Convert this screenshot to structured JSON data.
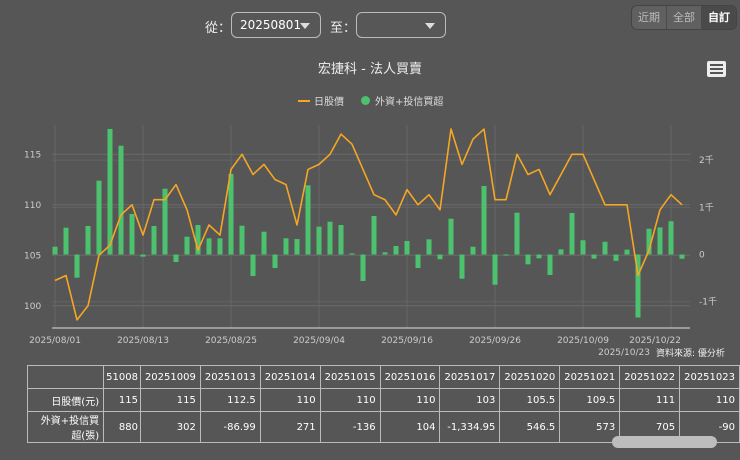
{
  "controls": {
    "from_label": "從：",
    "from_value": "20250801",
    "to_label": "至：",
    "to_value": "",
    "range_buttons": [
      "近期",
      "全部",
      "自訂"
    ],
    "active_range": "自訂"
  },
  "chart_data": {
    "type": "bar+line",
    "title": "宏捷科 - 法人買賣",
    "legend": [
      "日股價",
      "外資+投信買超"
    ],
    "legend_position": "top",
    "colors": {
      "price": "#f5a623",
      "net": "#4cc26e"
    },
    "source": "資料來源: 優分析",
    "x_tick_labels": [
      "2025/08/01",
      "2025/08/13",
      "2025/08/25",
      "2025/09/04",
      "2025/09/16",
      "2025/09/26",
      "2025/10/09",
      "2025/10/22",
      "2025/10/23"
    ],
    "y_left": {
      "ticks": [
        100,
        105,
        110,
        115
      ],
      "range": [
        97.8,
        117.9
      ]
    },
    "y_right": {
      "ticks": [
        -1000,
        0,
        1000,
        2000
      ],
      "tick_labels": [
        "-1千",
        "0",
        "1千",
        "2千"
      ],
      "range": [
        -1557,
        2744
      ]
    },
    "grid": true,
    "dates": [
      "2025/08/01",
      "2025/08/04",
      "2025/08/05",
      "2025/08/06",
      "2025/08/07",
      "2025/08/08",
      "2025/08/11",
      "2025/08/12",
      "2025/08/13",
      "2025/08/14",
      "2025/08/15",
      "2025/08/18",
      "2025/08/19",
      "2025/08/20",
      "2025/08/21",
      "2025/08/22",
      "2025/08/25",
      "2025/08/26",
      "2025/08/27",
      "2025/08/28",
      "2025/08/29",
      "2025/09/01",
      "2025/09/02",
      "2025/09/03",
      "2025/09/04",
      "2025/09/05",
      "2025/09/08",
      "2025/09/09",
      "2025/09/10",
      "2025/09/11",
      "2025/09/12",
      "2025/09/15",
      "2025/09/16",
      "2025/09/17",
      "2025/09/18",
      "2025/09/19",
      "2025/09/22",
      "2025/09/23",
      "2025/09/24",
      "2025/09/25",
      "2025/09/26",
      "2025/09/29",
      "2025/09/30",
      "2025/10/01",
      "2025/10/02",
      "2025/10/03",
      "2025/10/07",
      "2025/10/08",
      "2025/10/09",
      "2025/10/13",
      "2025/10/14",
      "2025/10/15",
      "2025/10/16",
      "2025/10/17",
      "2025/10/20",
      "2025/10/21",
      "2025/10/22",
      "2025/10/23"
    ],
    "series": [
      {
        "name": "日股價",
        "type": "line",
        "axis": "left",
        "values": [
          102.5,
          103,
          98.6,
          100,
          105,
          106,
          109,
          110,
          107,
          110.5,
          110.5,
          112,
          109.5,
          105.5,
          108,
          107,
          113.5,
          115,
          113,
          114,
          112.5,
          112,
          108,
          113.5,
          114,
          115,
          117,
          116,
          113.5,
          111,
          110.5,
          109,
          111.5,
          110,
          111,
          109.5,
          117.5,
          114,
          116.5,
          117.5,
          110.5,
          110.5,
          115,
          113,
          113.5,
          111,
          113,
          115,
          115,
          112.5,
          110,
          110,
          110,
          103,
          105.5,
          109.5,
          111,
          110
        ]
      },
      {
        "name": "外資+投信買超",
        "type": "bar",
        "axis": "right",
        "values": [
          165,
          568,
          -490,
          604,
          1564,
          2660,
          2305,
          858,
          -45,
          604,
          1394,
          -160,
          377,
          625,
          343,
          343,
          1705,
          610,
          -455,
          483,
          -286,
          343,
          328,
          1466,
          589,
          695,
          625,
          25,
          -561,
          816,
          47,
          180,
          286,
          -286,
          322,
          -102,
          758,
          -513,
          165,
          1451,
          -640,
          0,
          886,
          -208,
          -81,
          -434,
          110,
          880,
          302,
          -86.99,
          271,
          -136,
          104,
          -1334.95,
          546.5,
          573,
          705,
          -90
        ]
      }
    ]
  },
  "table": {
    "headers": [
      "",
      "51008",
      "20251009",
      "20251013",
      "20251014",
      "20251015",
      "20251016",
      "20251017",
      "20251020",
      "20251021",
      "20251022",
      "20251023"
    ],
    "rows": [
      {
        "label": "日股價(元)",
        "cells": [
          "115",
          "115",
          "112.5",
          "110",
          "110",
          "110",
          "103",
          "105.5",
          "109.5",
          "111",
          "110"
        ]
      },
      {
        "label": "外資+投信買超(張)",
        "cells": [
          "880",
          "302",
          "-86.99",
          "271",
          "-136",
          "104",
          "-1,334.95",
          "546.5",
          "573",
          "705",
          "-90"
        ]
      }
    ]
  }
}
